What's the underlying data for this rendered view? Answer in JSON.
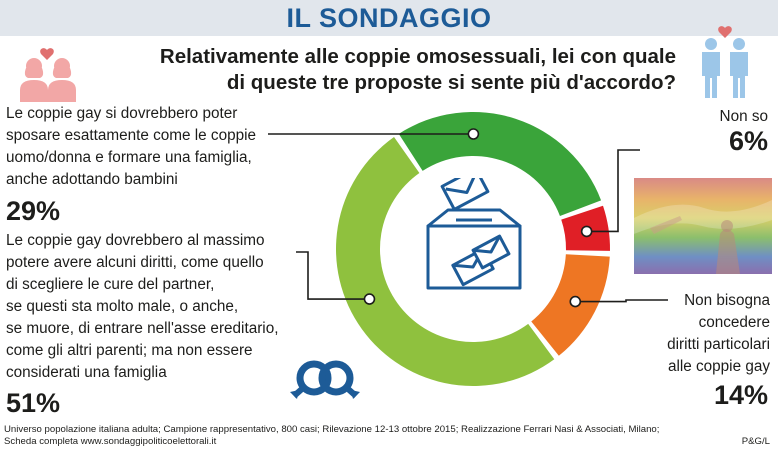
{
  "header": {
    "title": "IL SONDAGGIO"
  },
  "question": {
    "line1": "Relativamente alle coppie omosessuali, lei con quale",
    "line2": "di queste tre proposte si sente più d'accordo?"
  },
  "chart_data": {
    "type": "pie",
    "variant": "donut",
    "title": "Relativamente alle coppie omosessuali, lei con quale di queste tre proposte si sente più d'accordo?",
    "slices": [
      {
        "label_lines": [
          "Le coppie gay si dovrebbero poter",
          "sposare esattamente come le coppie",
          "uomo/donna e formare una famiglia,",
          "anche adottando bambini"
        ],
        "value": 29,
        "value_label": "29%",
        "color": "#3aa43a"
      },
      {
        "label_lines": [
          "Non so"
        ],
        "value": 6,
        "value_label": "6%",
        "color": "#e01f26"
      },
      {
        "label_lines": [
          "Non bisogna",
          "concedere",
          "diritti particolari",
          "alle coppie gay"
        ],
        "value": 14,
        "value_label": "14%",
        "color": "#ee7623"
      },
      {
        "label_lines": [
          "Le coppie gay dovrebbero al massimo",
          "potere avere alcuni diritti, come quello",
          "di scegliere le cure del partner,",
          "se questi sta molto male, o anche,",
          "se muore, di entrare nell'asse ereditario,",
          "come gli altri parenti; ma non essere",
          "considerati una famiglia"
        ],
        "value": 51,
        "value_label": "51%",
        "color": "#8fc13e"
      }
    ]
  },
  "footer": {
    "line1": "Universo popolazione italiana adulta; Campione rappresentativo, 800 casi; Rilevazione  12-13 ottobre 2015; Realizzazione Ferrari Nasi & Associati, Milano;",
    "line2": "Scheda completa www.sondaggipoliticoelettorali.it",
    "credit": "P&G/L"
  },
  "icons": [
    "women-couple-icon",
    "men-couple-icon",
    "ballot-box-icon",
    "male-symbols-icon",
    "rainbow-flag-photo"
  ],
  "colors": {
    "header_bg": "#e1e6ec",
    "title": "#1d5b97",
    "icon_blue": "#1d5b97",
    "pink": "#f2a7a6",
    "light_blue": "#9cc6e8"
  }
}
